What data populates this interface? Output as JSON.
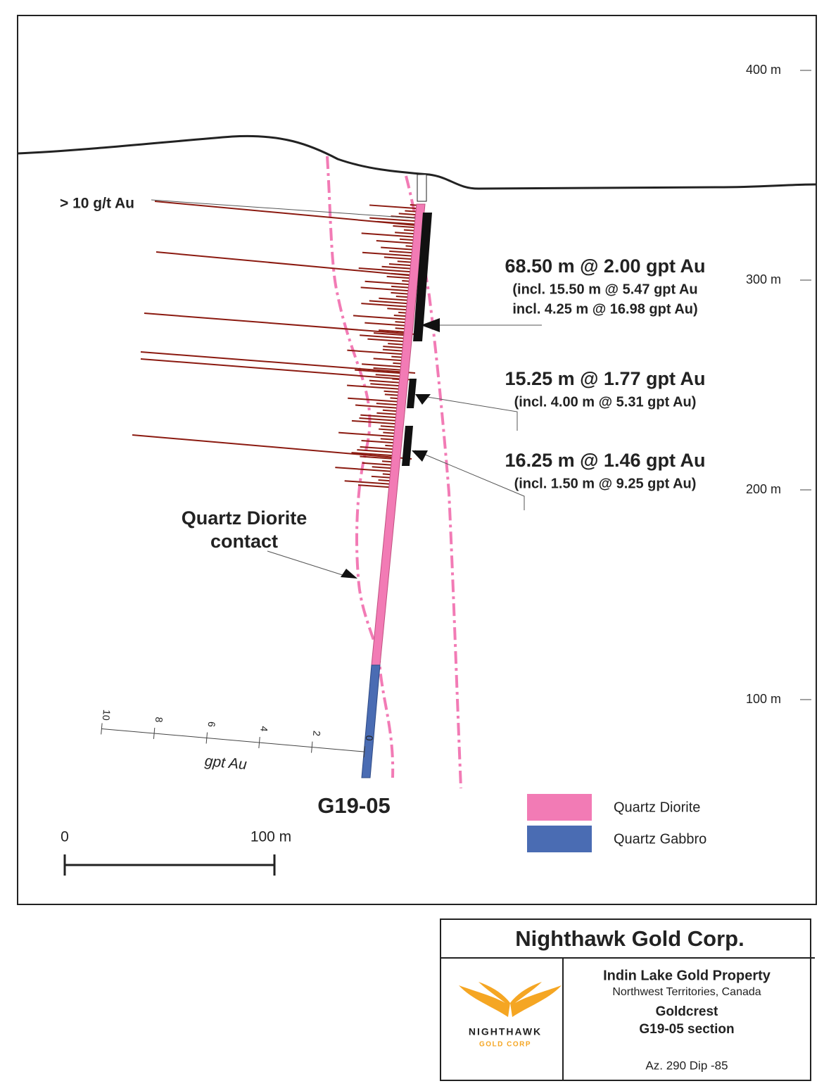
{
  "section": {
    "elevation_ticks": [
      "400 m",
      "300 m",
      "200 m",
      "100 m"
    ],
    "threshold_label": "> 10 g/t Au",
    "intercepts": [
      {
        "main": "68.50 m @ 2.00 gpt Au",
        "detail": [
          "(incl. 15.50 m @ 5.47 gpt Au",
          "incl. 4.25 m @ 16.98 gpt Au)"
        ]
      },
      {
        "main": "15.25 m @ 1.77 gpt Au",
        "detail": [
          "(incl. 4.00 m @ 5.31 gpt Au)"
        ]
      },
      {
        "main": "16.25 m @ 1.46 gpt Au",
        "detail": [
          "(incl. 1.50 m @ 9.25 gpt Au)"
        ]
      }
    ],
    "contact_label": [
      "Quartz Diorite",
      "contact"
    ],
    "grade_scale": {
      "ticks": [
        "10",
        "8",
        "6",
        "4",
        "2",
        "0"
      ],
      "label": "gpt Au"
    },
    "hole_id": "G19-05",
    "scale_bar": {
      "start": "0",
      "end": "100 m"
    },
    "legend": [
      {
        "name": "Quartz Diorite",
        "color": "#f27bb5"
      },
      {
        "name": "Quartz Gabbro",
        "color": "#4a6cb3"
      }
    ]
  },
  "title_block": {
    "company": "Nighthawk Gold Corp.",
    "logo": {
      "name": "NIGHTHAWK",
      "sub": "GOLD CORP"
    },
    "property": "Indin Lake Gold Property",
    "location": "Northwest Territories, Canada",
    "area": "Goldcrest",
    "section": "G19-05 section",
    "orientation": "Az. 290  Dip -85"
  }
}
